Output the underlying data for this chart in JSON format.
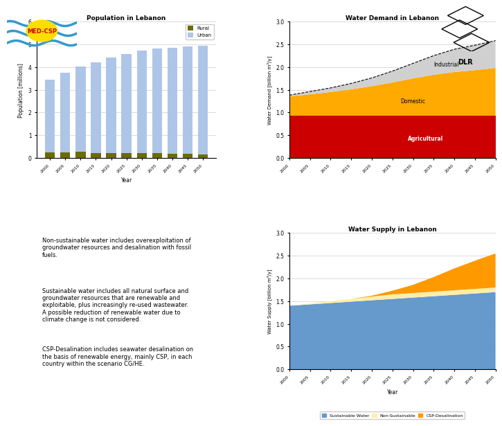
{
  "pop_years": [
    2000,
    2005,
    2010,
    2015,
    2020,
    2025,
    2030,
    2035,
    2040,
    2045,
    2050
  ],
  "pop_urban": [
    3.2,
    3.5,
    3.75,
    4.0,
    4.2,
    4.35,
    4.5,
    4.6,
    4.65,
    4.75,
    4.8
  ],
  "pop_rural": [
    0.25,
    0.25,
    0.27,
    0.22,
    0.22,
    0.22,
    0.22,
    0.2,
    0.18,
    0.17,
    0.15
  ],
  "pop_urban_color": "#adc6e8",
  "pop_rural_color": "#6b6b00",
  "pop_title": "Population in Lebanon",
  "pop_xlabel": "Year",
  "pop_ylabel": "Population [millions]",
  "pop_ylim": [
    0,
    6
  ],
  "demand_years": [
    2000,
    2005,
    2010,
    2015,
    2020,
    2025,
    2030,
    2035,
    2040,
    2045,
    2050
  ],
  "demand_agri": [
    0.93,
    0.93,
    0.93,
    0.93,
    0.93,
    0.93,
    0.93,
    0.93,
    0.93,
    0.93,
    0.93
  ],
  "demand_domestic": [
    0.42,
    0.47,
    0.52,
    0.58,
    0.65,
    0.73,
    0.82,
    0.9,
    0.96,
    1.0,
    1.05
  ],
  "demand_industrial": [
    0.03,
    0.06,
    0.09,
    0.13,
    0.18,
    0.25,
    0.33,
    0.42,
    0.5,
    0.55,
    0.6
  ],
  "demand_agri_color": "#cc0000",
  "demand_domestic_color": "#ffaa00",
  "demand_industrial_color": "#d0d0d0",
  "demand_title": "Water Demand in Lebanon",
  "demand_ylabel": "Water Demand [billion m³/y]",
  "demand_ylim": [
    0.0,
    3.0
  ],
  "supply_years": [
    2000,
    2005,
    2010,
    2015,
    2020,
    2025,
    2030,
    2035,
    2040,
    2045,
    2050
  ],
  "supply_sustainable": [
    1.4,
    1.43,
    1.46,
    1.49,
    1.52,
    1.55,
    1.58,
    1.61,
    1.64,
    1.67,
    1.7
  ],
  "supply_nonsustainable": [
    0.0,
    0.02,
    0.04,
    0.06,
    0.08,
    0.1,
    0.1,
    0.1,
    0.1,
    0.1,
    0.1
  ],
  "supply_csp": [
    0.0,
    0.0,
    0.0,
    0.0,
    0.02,
    0.08,
    0.18,
    0.32,
    0.48,
    0.62,
    0.75
  ],
  "supply_sustainable_color": "#6699cc",
  "supply_nonsustainable_color": "#ffeeaa",
  "supply_csp_color": "#ff9900",
  "supply_title": "Water Supply in Lebanon",
  "supply_ylabel": "Water Supply [billion m³/y]",
  "supply_ylim": [
    0.0,
    3.0
  ],
  "text_block1": "Non-sustainable water includes overexploitation of\ngroundwater resources and desalination with fossil\nfuels.",
  "text_block2": "Sustainable water includes all natural surface and\ngroundwater resources that are renewable and\nexploitable, plus increasingly re-used wastewater.\nA possible reduction of renewable water due to\nclimate change is not considered.",
  "text_block3": "CSP-Desalination includes seawater desalination on\nthe basis of renewable energy, mainly CSP, in each\ncountry within the scenario CG/HE.",
  "background_color": "#ffffff",
  "grid_color": "#cccccc"
}
